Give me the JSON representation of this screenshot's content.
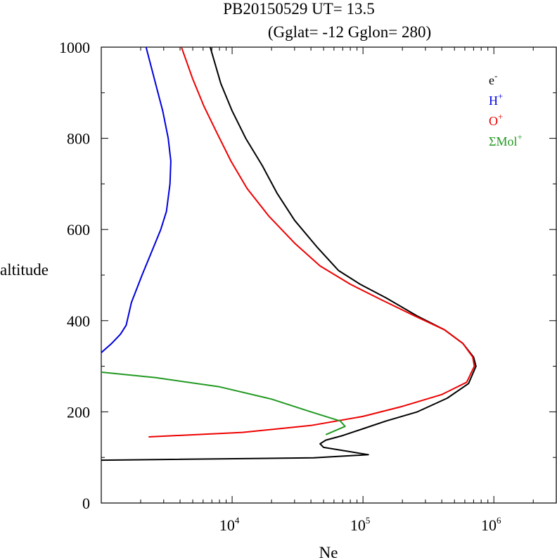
{
  "chart_data": {
    "type": "line",
    "title": "PB20150529   UT=  13.5",
    "subtitle": "(Gglat= -12   Gglon=  280)",
    "xlabel": "Ne",
    "ylabel": "altitude",
    "xscale": "log",
    "xlim": [
      1000,
      3000000
    ],
    "ylim": [
      0,
      1000
    ],
    "x_tick_labels": [
      {
        "value": 10000,
        "base": "10",
        "exp": "4"
      },
      {
        "value": 100000,
        "base": "10",
        "exp": "5"
      },
      {
        "value": 1000000,
        "base": "10",
        "exp": "6"
      }
    ],
    "y_ticks": [
      0,
      200,
      400,
      600,
      800,
      1000
    ],
    "legend_position": "top-right",
    "series": [
      {
        "name": "e-",
        "label_base": "e",
        "label_sup": "-",
        "color": "#000000",
        "points": [
          [
            1000,
            94
          ],
          [
            42000,
            99
          ],
          [
            110000,
            106
          ],
          [
            50000,
            122
          ],
          [
            47000,
            130
          ],
          [
            52000,
            138
          ],
          [
            70000,
            148
          ],
          [
            98000,
            162
          ],
          [
            150000,
            180
          ],
          [
            260000,
            200
          ],
          [
            440000,
            230
          ],
          [
            640000,
            262
          ],
          [
            730000,
            300
          ],
          [
            700000,
            320
          ],
          [
            580000,
            350
          ],
          [
            420000,
            380
          ],
          [
            260000,
            410
          ],
          [
            150000,
            450
          ],
          [
            95000,
            480
          ],
          [
            65000,
            510
          ],
          [
            45000,
            560
          ],
          [
            30000,
            620
          ],
          [
            22000,
            680
          ],
          [
            17000,
            740
          ],
          [
            12700,
            800
          ],
          [
            10000,
            860
          ],
          [
            8200,
            920
          ],
          [
            6800,
            1000
          ]
        ]
      },
      {
        "name": "H+",
        "label_base": "H",
        "label_sup": "+",
        "color": "#0000dd",
        "points": [
          [
            1000,
            330
          ],
          [
            1200,
            350
          ],
          [
            1400,
            370
          ],
          [
            1550,
            390
          ],
          [
            1700,
            440
          ],
          [
            2050,
            500
          ],
          [
            2500,
            560
          ],
          [
            2850,
            600
          ],
          [
            3150,
            640
          ],
          [
            3350,
            700
          ],
          [
            3400,
            750
          ],
          [
            3250,
            800
          ],
          [
            2950,
            860
          ],
          [
            2600,
            920
          ],
          [
            2200,
            1000
          ]
        ]
      },
      {
        "name": "O+",
        "label_base": "O",
        "label_sup": "+",
        "color": "#ee0000",
        "points": [
          [
            2300,
            145
          ],
          [
            12000,
            155
          ],
          [
            40000,
            170
          ],
          [
            100000,
            190
          ],
          [
            200000,
            212
          ],
          [
            400000,
            238
          ],
          [
            620000,
            265
          ],
          [
            710000,
            300
          ],
          [
            690000,
            320
          ],
          [
            580000,
            350
          ],
          [
            420000,
            380
          ],
          [
            250000,
            410
          ],
          [
            140000,
            445
          ],
          [
            80000,
            480
          ],
          [
            47000,
            520
          ],
          [
            30000,
            570
          ],
          [
            19000,
            630
          ],
          [
            13000,
            690
          ],
          [
            9800,
            750
          ],
          [
            7700,
            810
          ],
          [
            6100,
            870
          ],
          [
            5000,
            930
          ],
          [
            4100,
            1000
          ]
        ]
      },
      {
        "name": "ΣMol+",
        "label_base": "ΣMol",
        "label_sup": "+",
        "color": "#229922",
        "points": [
          [
            1000,
            287
          ],
          [
            2600,
            275
          ],
          [
            8000,
            255
          ],
          [
            20000,
            228
          ],
          [
            40000,
            200
          ],
          [
            67000,
            180
          ],
          [
            73000,
            168
          ],
          [
            52000,
            150
          ]
        ]
      }
    ]
  }
}
